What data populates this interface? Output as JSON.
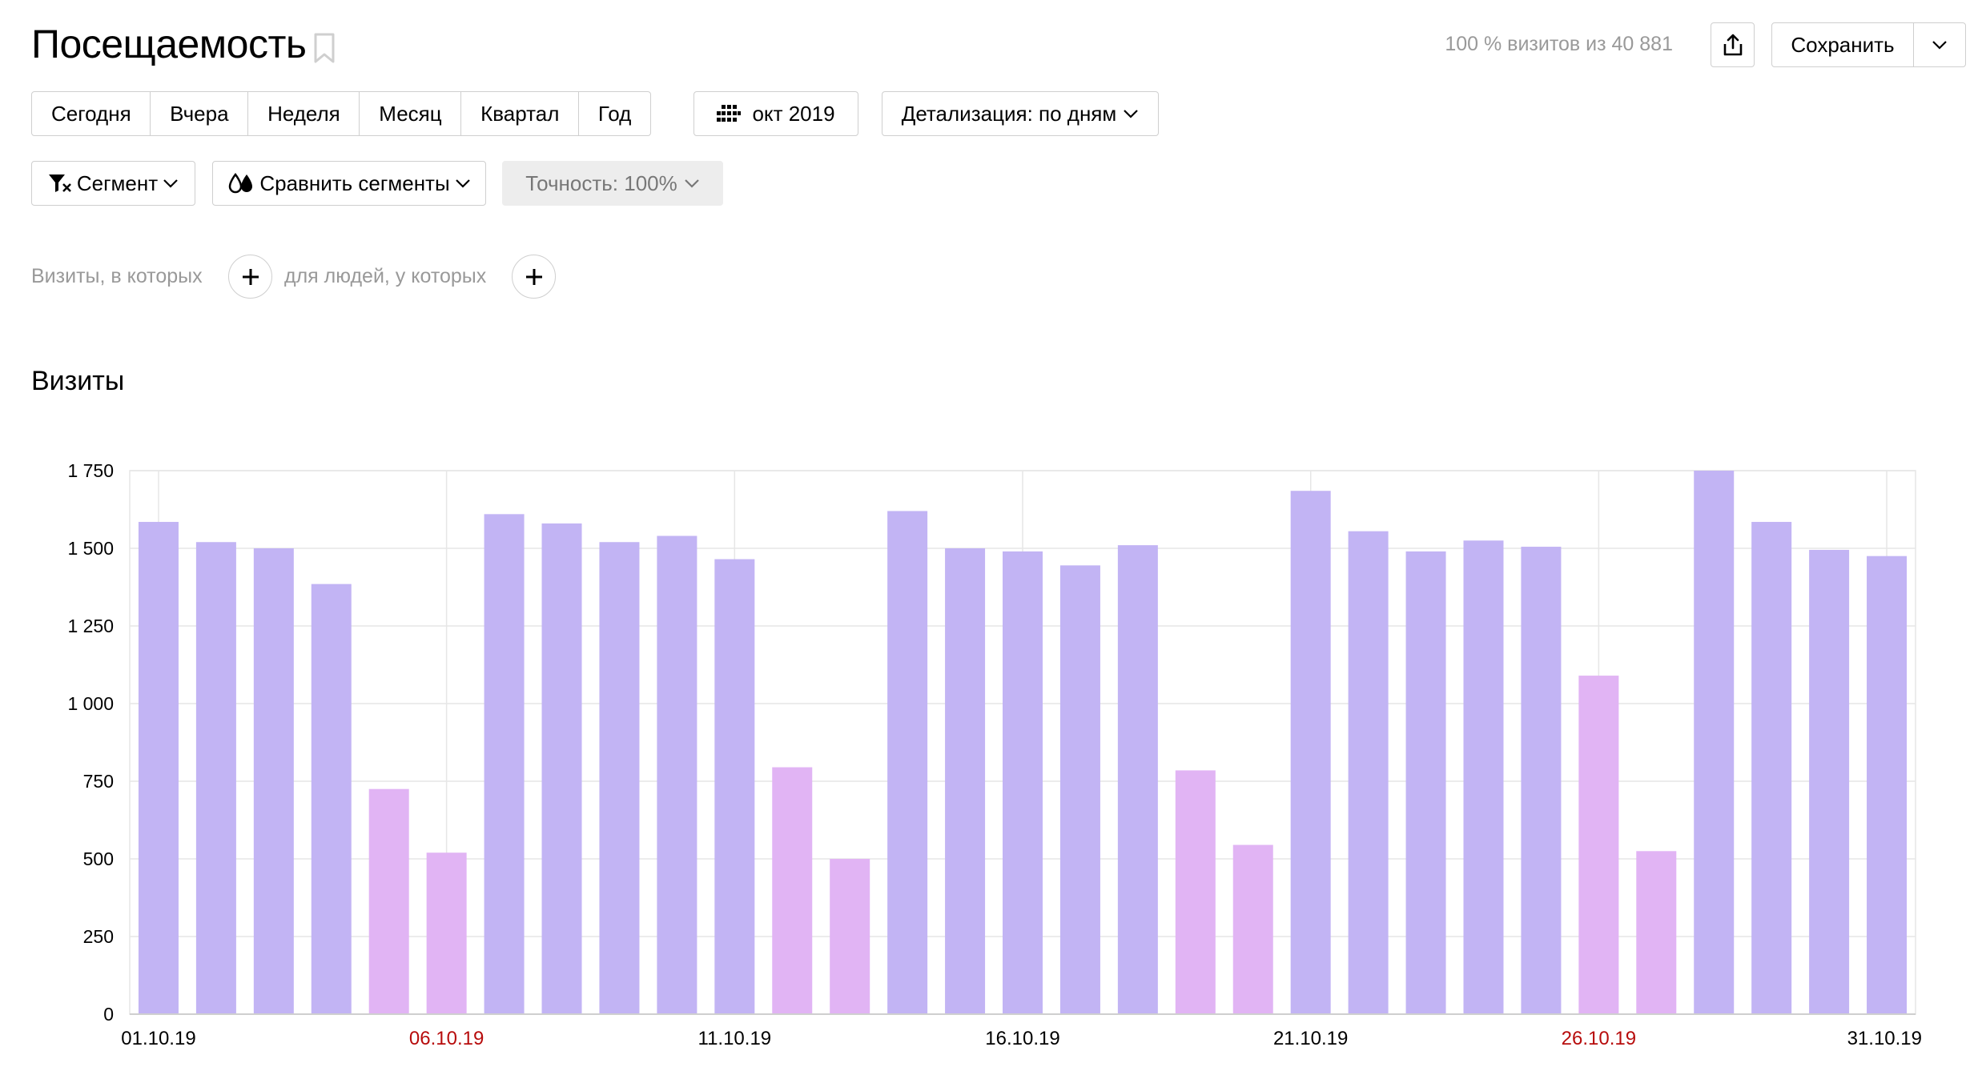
{
  "header": {
    "title": "Посещаемость",
    "summary": "100 % визитов из 40 881",
    "save_label": "Сохранить"
  },
  "periods": [
    "Сегодня",
    "Вчера",
    "Неделя",
    "Месяц",
    "Квартал",
    "Год"
  ],
  "month_picker": {
    "label": "окт 2019",
    "icon": "calendar-grid-icon"
  },
  "detail": {
    "label": "Детализация: по дням"
  },
  "segment": {
    "label": "Сегмент",
    "icon": "filter-icon"
  },
  "compare": {
    "label": "Сравнить сегменты",
    "icon": "drops-icon"
  },
  "accuracy": {
    "label": "Точность: 100%"
  },
  "filters": {
    "visits_label": "Визиты, в которых",
    "people_label": "для людей, у которых"
  },
  "colors": {
    "weekday_bar": "#c2b4f4",
    "weekend_bar": "#e1b4f4",
    "weekend_label": "#b70c0c",
    "grid": "#e6e6e6"
  },
  "chart_data": {
    "type": "bar",
    "title": "Визиты",
    "ylim": [
      0,
      1750
    ],
    "yticks": [
      0,
      250,
      500,
      750,
      1000,
      1250,
      1500,
      1750
    ],
    "ytick_labels": [
      "0",
      "250",
      "500",
      "750",
      "1 000",
      "1 250",
      "1 500",
      "1 750"
    ],
    "grid": true,
    "categories": [
      "01.10.19",
      "02.10.19",
      "03.10.19",
      "04.10.19",
      "05.10.19",
      "06.10.19",
      "07.10.19",
      "08.10.19",
      "09.10.19",
      "10.10.19",
      "11.10.19",
      "12.10.19",
      "13.10.19",
      "14.10.19",
      "15.10.19",
      "16.10.19",
      "17.10.19",
      "18.10.19",
      "19.10.19",
      "20.10.19",
      "21.10.19",
      "22.10.19",
      "23.10.19",
      "24.10.19",
      "25.10.19",
      "26.10.19",
      "27.10.19",
      "28.10.19",
      "29.10.19",
      "30.10.19",
      "31.10.19"
    ],
    "xtick_labels": [
      {
        "label": "01.10.19",
        "index": 0,
        "weekend": false
      },
      {
        "label": "06.10.19",
        "index": 5,
        "weekend": true
      },
      {
        "label": "11.10.19",
        "index": 10,
        "weekend": false
      },
      {
        "label": "16.10.19",
        "index": 15,
        "weekend": false
      },
      {
        "label": "21.10.19",
        "index": 20,
        "weekend": false
      },
      {
        "label": "26.10.19",
        "index": 25,
        "weekend": true
      },
      {
        "label": "31.10.19",
        "index": 30,
        "weekend": false
      }
    ],
    "values": [
      1585,
      1520,
      1500,
      1385,
      725,
      520,
      1610,
      1580,
      1520,
      1540,
      1465,
      795,
      500,
      1620,
      1500,
      1490,
      1445,
      1510,
      785,
      545,
      1685,
      1555,
      1490,
      1525,
      1505,
      1090,
      525,
      1750,
      1585,
      1495,
      1475
    ],
    "weekend_flags": [
      false,
      false,
      false,
      false,
      true,
      true,
      false,
      false,
      false,
      false,
      false,
      true,
      true,
      false,
      false,
      false,
      false,
      false,
      true,
      true,
      false,
      false,
      false,
      false,
      false,
      true,
      true,
      false,
      false,
      false,
      false
    ]
  }
}
